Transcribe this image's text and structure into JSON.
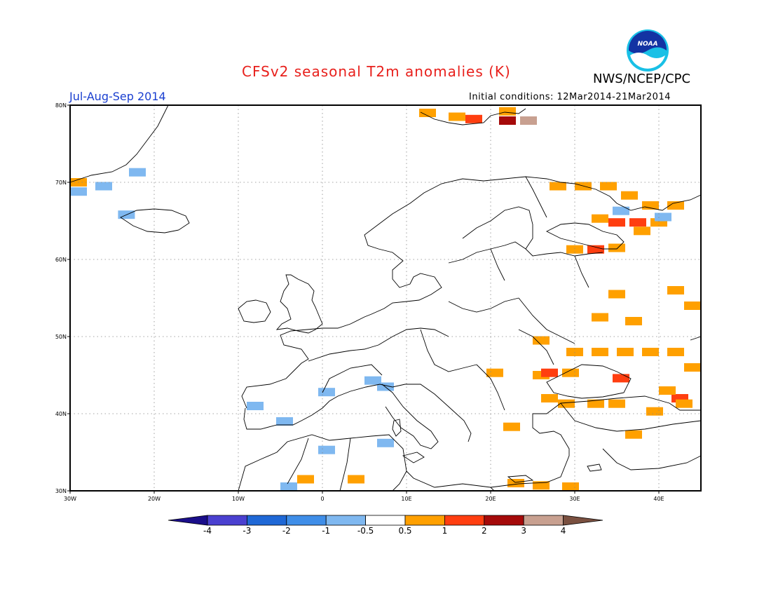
{
  "header": {
    "title": "CFSv2 seasonal T2m anomalies (K)",
    "period": "Jul-Aug-Sep 2014",
    "agency": "NWS/NCEP/CPC",
    "initial_conditions": "Initial conditions: 12Mar2014-21Mar2014",
    "logo_text": "NOAA"
  },
  "map": {
    "lon_range": [
      -30,
      45
    ],
    "lat_range": [
      30,
      80
    ],
    "lat_ticks": [
      {
        "value": 80,
        "label": "80N"
      },
      {
        "value": 70,
        "label": "70N"
      },
      {
        "value": 60,
        "label": "60N"
      },
      {
        "value": 50,
        "label": "50N"
      },
      {
        "value": 40,
        "label": "40N"
      },
      {
        "value": 30,
        "label": "30N"
      }
    ],
    "lon_ticks": [
      {
        "value": -30,
        "label": "30W"
      },
      {
        "value": -20,
        "label": "20W"
      },
      {
        "value": -10,
        "label": "10W"
      },
      {
        "value": 0,
        "label": "0"
      },
      {
        "value": 10,
        "label": "10E"
      },
      {
        "value": 20,
        "label": "20E"
      },
      {
        "value": 30,
        "label": "30E"
      },
      {
        "value": 40,
        "label": "40E"
      }
    ],
    "grid": "dotted"
  },
  "colorbar": {
    "labels": [
      "-4",
      "-3",
      "-2",
      "-1",
      "-0.5",
      "0.5",
      "1",
      "2",
      "3",
      "4"
    ],
    "colors": [
      "#1a0e8a",
      "#4a40d0",
      "#1f68d6",
      "#3f8ee8",
      "#7fb8f0",
      "#ffffff",
      "#ffa000",
      "#ff3e10",
      "#a50a0a",
      "#c8a090",
      "#7a5040"
    ]
  },
  "anomaly_cells": [
    {
      "lon": -29.5,
      "lat": 70,
      "level": "0.5-1"
    },
    {
      "lon": -29.5,
      "lat": 68.8,
      "level": "-0.5--1"
    },
    {
      "lon": -26,
      "lat": 69.5,
      "level": "-0.5--1"
    },
    {
      "lon": -22,
      "lat": 71.3,
      "level": "-0.5--1"
    },
    {
      "lon": -23.3,
      "lat": 65.8,
      "level": "-0.5--1"
    },
    {
      "lon": 12.5,
      "lat": 79,
      "level": "0.5-1"
    },
    {
      "lon": 16,
      "lat": 78.5,
      "level": "0.5-1"
    },
    {
      "lon": 18,
      "lat": 78.2,
      "level": "1-2"
    },
    {
      "lon": 22,
      "lat": 78,
      "level": "2-3"
    },
    {
      "lon": 24.5,
      "lat": 78,
      "level": "3-4"
    },
    {
      "lon": 22,
      "lat": 79.2,
      "level": "0.5-1"
    },
    {
      "lon": 28,
      "lat": 69.5,
      "level": "0.5-1"
    },
    {
      "lon": 31,
      "lat": 69.5,
      "level": "0.5-1"
    },
    {
      "lon": 34,
      "lat": 69.5,
      "level": "0.5-1"
    },
    {
      "lon": 36.5,
      "lat": 68.3,
      "level": "0.5-1"
    },
    {
      "lon": 39,
      "lat": 67,
      "level": "0.5-1"
    },
    {
      "lon": 42,
      "lat": 67,
      "level": "0.5-1"
    },
    {
      "lon": 33,
      "lat": 65.3,
      "level": "0.5-1"
    },
    {
      "lon": 35,
      "lat": 64.8,
      "level": "1-2"
    },
    {
      "lon": 37.5,
      "lat": 64.8,
      "level": "1-2"
    },
    {
      "lon": 38,
      "lat": 63.7,
      "level": "0.5-1"
    },
    {
      "lon": 40,
      "lat": 64.8,
      "level": "0.5-1"
    },
    {
      "lon": 40.5,
      "lat": 65.5,
      "level": "-0.5--1"
    },
    {
      "lon": 35.5,
      "lat": 66.3,
      "level": "-0.5--1"
    },
    {
      "lon": 30,
      "lat": 61.3,
      "level": "0.5-1"
    },
    {
      "lon": 32.5,
      "lat": 61.3,
      "level": "1-2"
    },
    {
      "lon": 35,
      "lat": 61.5,
      "level": "0.5-1"
    },
    {
      "lon": 35,
      "lat": 55.5,
      "level": "0.5-1"
    },
    {
      "lon": 42,
      "lat": 56,
      "level": "0.5-1"
    },
    {
      "lon": 44,
      "lat": 54,
      "level": "0.5-1"
    },
    {
      "lon": 33,
      "lat": 52.5,
      "level": "0.5-1"
    },
    {
      "lon": 37,
      "lat": 52,
      "level": "0.5-1"
    },
    {
      "lon": 30,
      "lat": 48,
      "level": "0.5-1"
    },
    {
      "lon": 33,
      "lat": 48,
      "level": "0.5-1"
    },
    {
      "lon": 36,
      "lat": 48,
      "level": "0.5-1"
    },
    {
      "lon": 39,
      "lat": 48,
      "level": "0.5-1"
    },
    {
      "lon": 42,
      "lat": 48,
      "level": "0.5-1"
    },
    {
      "lon": 44,
      "lat": 46,
      "level": "0.5-1"
    },
    {
      "lon": 26,
      "lat": 49.5,
      "level": "0.5-1"
    },
    {
      "lon": 20.5,
      "lat": 45.3,
      "level": "0.5-1"
    },
    {
      "lon": 26,
      "lat": 45,
      "level": "0.5-1"
    },
    {
      "lon": 27,
      "lat": 45.3,
      "level": "1-2"
    },
    {
      "lon": 29.5,
      "lat": 45.3,
      "level": "0.5-1"
    },
    {
      "lon": 35.5,
      "lat": 44.6,
      "level": "1-2"
    },
    {
      "lon": 27,
      "lat": 42,
      "level": "0.5-1"
    },
    {
      "lon": 29,
      "lat": 41.3,
      "level": "0.5-1"
    },
    {
      "lon": 32.5,
      "lat": 41.3,
      "level": "0.5-1"
    },
    {
      "lon": 35,
      "lat": 41.3,
      "level": "0.5-1"
    },
    {
      "lon": 39.5,
      "lat": 40.3,
      "level": "0.5-1"
    },
    {
      "lon": 42.5,
      "lat": 42,
      "level": "1-2"
    },
    {
      "lon": 43,
      "lat": 41.3,
      "level": "0.5-1"
    },
    {
      "lon": 41,
      "lat": 43,
      "level": "0.5-1"
    },
    {
      "lon": 22.5,
      "lat": 38.3,
      "level": "0.5-1"
    },
    {
      "lon": 37,
      "lat": 37.3,
      "level": "0.5-1"
    },
    {
      "lon": 23,
      "lat": 31,
      "level": "0.5-1"
    },
    {
      "lon": 26,
      "lat": 30.7,
      "level": "0.5-1"
    },
    {
      "lon": 29.5,
      "lat": 30.5,
      "level": "0.5-1"
    },
    {
      "lon": -2,
      "lat": 31.5,
      "level": "0.5-1"
    },
    {
      "lon": 4,
      "lat": 31.5,
      "level": "0.5-1"
    },
    {
      "lon": 0.5,
      "lat": 42.8,
      "level": "-0.5--1"
    },
    {
      "lon": 6,
      "lat": 44.3,
      "level": "-0.5--1"
    },
    {
      "lon": 7.5,
      "lat": 43.5,
      "level": "-0.5--1"
    },
    {
      "lon": -8,
      "lat": 41,
      "level": "-0.5--1"
    },
    {
      "lon": -4.5,
      "lat": 39,
      "level": "-0.5--1"
    },
    {
      "lon": 0.5,
      "lat": 35.3,
      "level": "-0.5--1"
    },
    {
      "lon": 7.5,
      "lat": 36.2,
      "level": "-0.5--1"
    },
    {
      "lon": -4,
      "lat": 30.5,
      "level": "-0.5--1"
    }
  ]
}
